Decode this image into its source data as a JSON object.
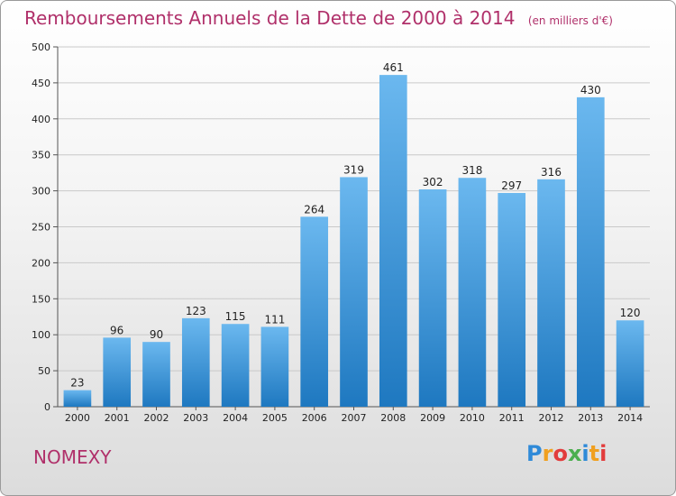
{
  "header": {
    "title": "Remboursements Annuels de la Dette de 2000 à 2014",
    "subtitle": "(en milliers d'€)"
  },
  "footer": {
    "commune": "NOMEXY",
    "logo_letters": [
      "P",
      "r",
      "o",
      "x",
      "i",
      "t",
      "i"
    ],
    "logo_colors": [
      "#2f8ad8",
      "#f0a020",
      "#e23c3c",
      "#4caf50",
      "#2f8ad8",
      "#f0a020",
      "#e23c3c"
    ]
  },
  "colors": {
    "title": "#b0306a",
    "bar_top": "#6bb8ef",
    "bar_bottom": "#1e78c0",
    "grid": "#c9c9c9"
  },
  "chart_data": {
    "type": "bar",
    "title": "Remboursements Annuels de la Dette de 2000 à 2014",
    "subtitle": "(en milliers d'€)",
    "categories": [
      "2000",
      "2001",
      "2002",
      "2003",
      "2004",
      "2005",
      "2006",
      "2007",
      "2008",
      "2009",
      "2010",
      "2011",
      "2012",
      "2013",
      "2014"
    ],
    "values": [
      23,
      96,
      90,
      123,
      115,
      111,
      264,
      319,
      461,
      302,
      318,
      297,
      316,
      430,
      120
    ],
    "ylim": [
      0,
      500
    ],
    "yticks": [
      0,
      50,
      100,
      150,
      200,
      250,
      300,
      350,
      400,
      450,
      500
    ],
    "grid": true,
    "xlabel": "",
    "ylabel": ""
  }
}
